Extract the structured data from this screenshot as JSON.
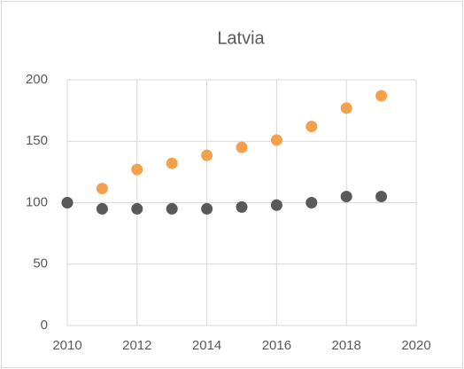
{
  "chart_data": {
    "type": "scatter",
    "title": "Latvia",
    "x": [
      2010,
      2011,
      2012,
      2013,
      2014,
      2015,
      2016,
      2017,
      2018,
      2019
    ],
    "series": [
      {
        "color": "#f5a04d",
        "values": [
          100,
          111.5,
          127,
          132,
          138.5,
          145,
          151,
          162,
          177,
          187
        ]
      },
      {
        "color": "#595959",
        "values": [
          100,
          95,
          95,
          95,
          95,
          96.5,
          98,
          100,
          105,
          105
        ]
      }
    ],
    "xlim": [
      2010,
      2020
    ],
    "xticks": [
      2010,
      2012,
      2014,
      2016,
      2018,
      2020
    ],
    "ylim": [
      0,
      200
    ],
    "yticks": [
      0,
      50,
      100,
      150,
      200
    ],
    "grid": true
  }
}
